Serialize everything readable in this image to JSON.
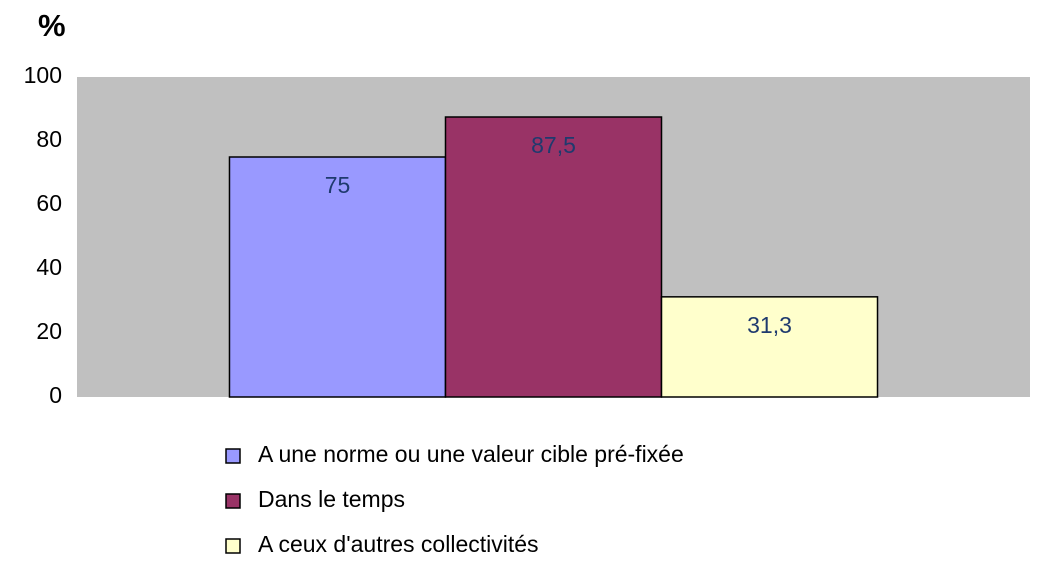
{
  "chart_data": {
    "type": "bar",
    "y_label": "%",
    "categories": [
      null
    ],
    "series": [
      {
        "name": "A une norme ou une valeur cible pré-fixée",
        "color": "#9999ff",
        "values": [
          75
        ],
        "value_labels": [
          "75"
        ]
      },
      {
        "name": "Dans le temps",
        "color": "#993366",
        "values": [
          87.5
        ],
        "value_labels": [
          "87,5"
        ]
      },
      {
        "name": "A ceux d'autres collectivités",
        "color": "#ffffcc",
        "values": [
          31.3
        ],
        "value_labels": [
          "31,3"
        ]
      }
    ],
    "ylim": [
      0,
      100
    ],
    "yticks": [
      0,
      20,
      40,
      60,
      80,
      100
    ],
    "grid": false,
    "plot_background": "#c0c0c0",
    "legend": "bottom"
  }
}
